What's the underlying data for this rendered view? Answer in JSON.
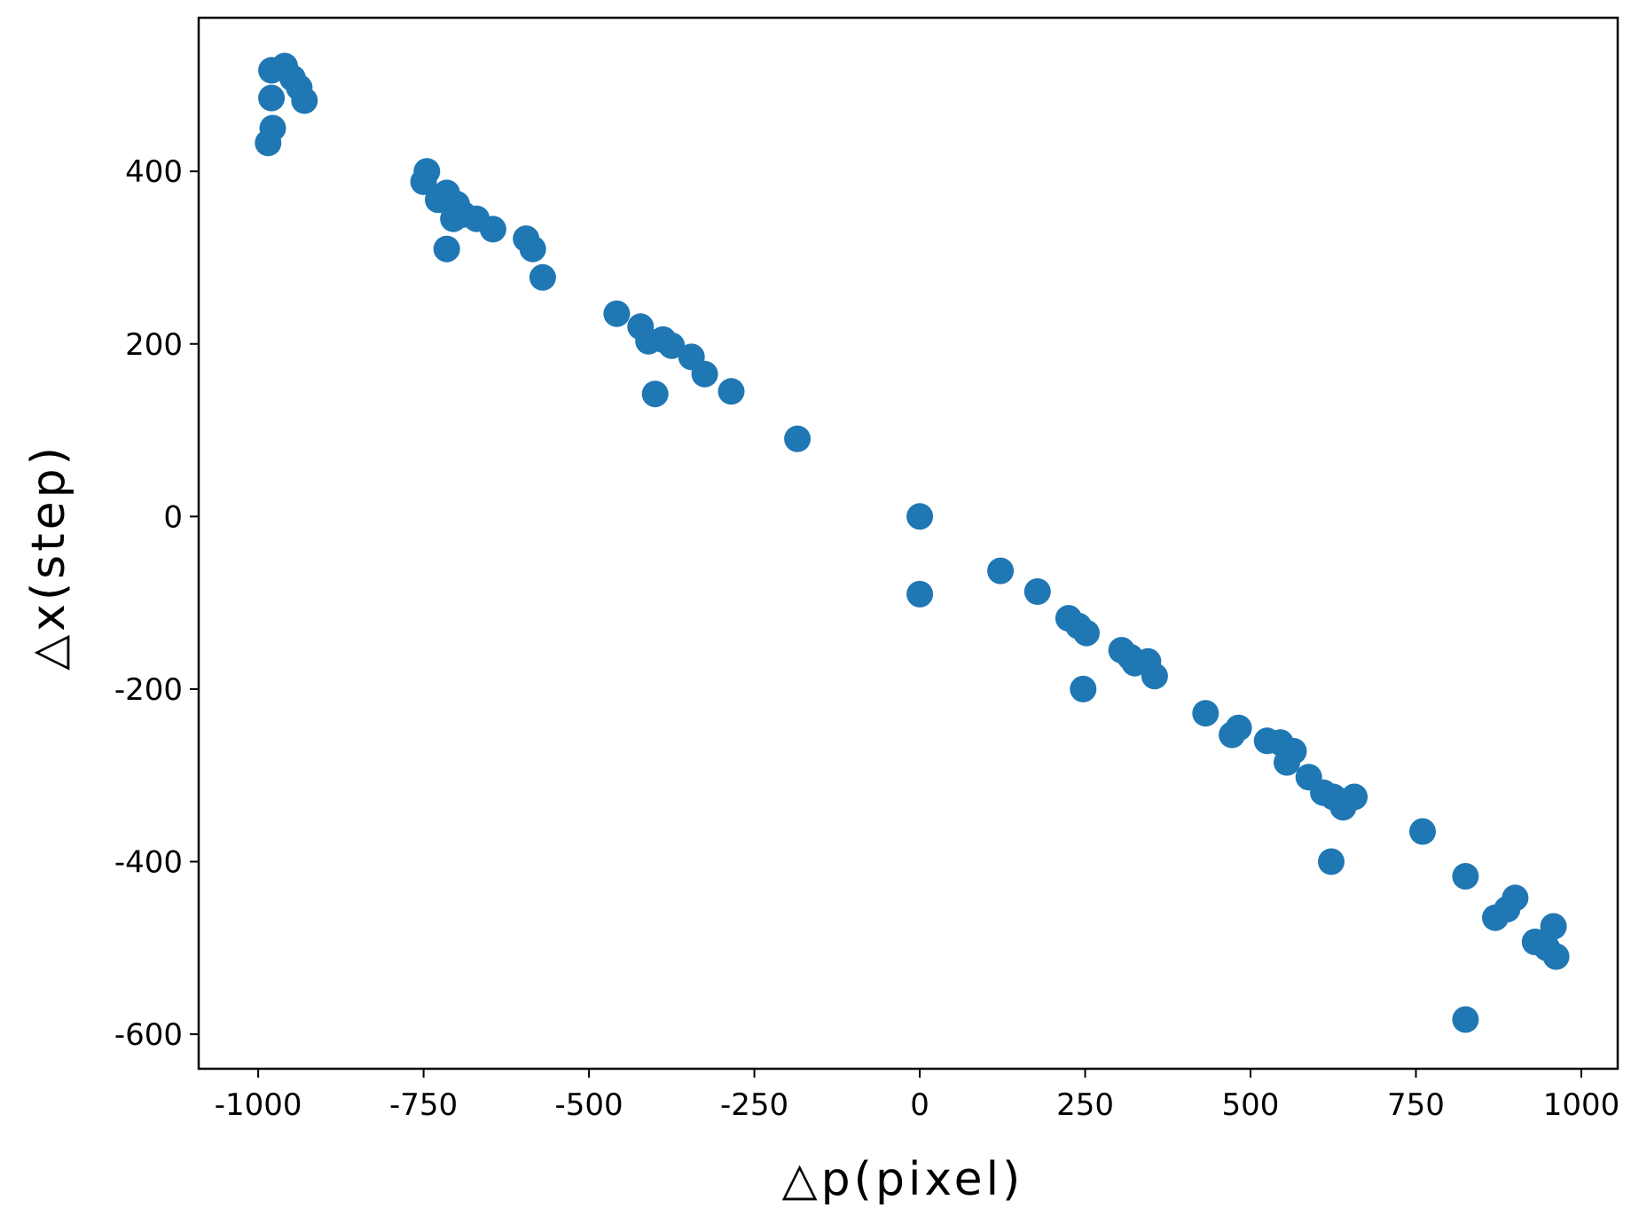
{
  "chart_data": {
    "type": "scatter",
    "xlabel": "△p(pixel)",
    "ylabel": "△x(step)",
    "xlim": [
      -1090,
      1055
    ],
    "ylim": [
      -640,
      578
    ],
    "xticks": [
      -1000,
      -750,
      -500,
      -250,
      0,
      250,
      500,
      750,
      1000
    ],
    "yticks": [
      -600,
      -400,
      -200,
      0,
      200,
      400
    ],
    "xtick_labels": [
      "-1000",
      "-750",
      "-500",
      "-250",
      "0",
      "250",
      "500",
      "750",
      "1000"
    ],
    "ytick_labels": [
      "-600",
      "-400",
      "-200",
      "0",
      "200",
      "400"
    ],
    "grid": false,
    "point_color": "#1f77b4",
    "series": [
      {
        "points": [
          [
            -980,
            517
          ],
          [
            -960,
            522
          ],
          [
            -948,
            508
          ],
          [
            -938,
            497
          ],
          [
            -930,
            482
          ],
          [
            -980,
            485
          ],
          [
            -978,
            450
          ],
          [
            -985,
            433
          ],
          [
            -745,
            400
          ],
          [
            -750,
            388
          ],
          [
            -715,
            375
          ],
          [
            -728,
            367
          ],
          [
            -700,
            362
          ],
          [
            -705,
            345
          ],
          [
            -690,
            350
          ],
          [
            -670,
            345
          ],
          [
            -645,
            333
          ],
          [
            -595,
            322
          ],
          [
            -585,
            310
          ],
          [
            -715,
            310
          ],
          [
            -570,
            277
          ],
          [
            -458,
            235
          ],
          [
            -422,
            220
          ],
          [
            -410,
            203
          ],
          [
            -388,
            205
          ],
          [
            -375,
            198
          ],
          [
            -345,
            185
          ],
          [
            -325,
            165
          ],
          [
            -400,
            142
          ],
          [
            -285,
            145
          ],
          [
            -185,
            90
          ],
          [
            0,
            0
          ],
          [
            0,
            -90
          ],
          [
            122,
            -63
          ],
          [
            178,
            -87
          ],
          [
            225,
            -118
          ],
          [
            240,
            -127
          ],
          [
            252,
            -135
          ],
          [
            305,
            -155
          ],
          [
            318,
            -163
          ],
          [
            325,
            -170
          ],
          [
            345,
            -168
          ],
          [
            355,
            -185
          ],
          [
            247,
            -200
          ],
          [
            432,
            -228
          ],
          [
            472,
            -253
          ],
          [
            482,
            -245
          ],
          [
            525,
            -260
          ],
          [
            545,
            -262
          ],
          [
            555,
            -285
          ],
          [
            565,
            -272
          ],
          [
            588,
            -302
          ],
          [
            610,
            -320
          ],
          [
            625,
            -325
          ],
          [
            640,
            -337
          ],
          [
            657,
            -325
          ],
          [
            622,
            -400
          ],
          [
            760,
            -365
          ],
          [
            825,
            -417
          ],
          [
            870,
            -465
          ],
          [
            888,
            -455
          ],
          [
            900,
            -442
          ],
          [
            930,
            -493
          ],
          [
            948,
            -500
          ],
          [
            958,
            -475
          ],
          [
            962,
            -510
          ],
          [
            825,
            -583
          ]
        ]
      }
    ]
  }
}
